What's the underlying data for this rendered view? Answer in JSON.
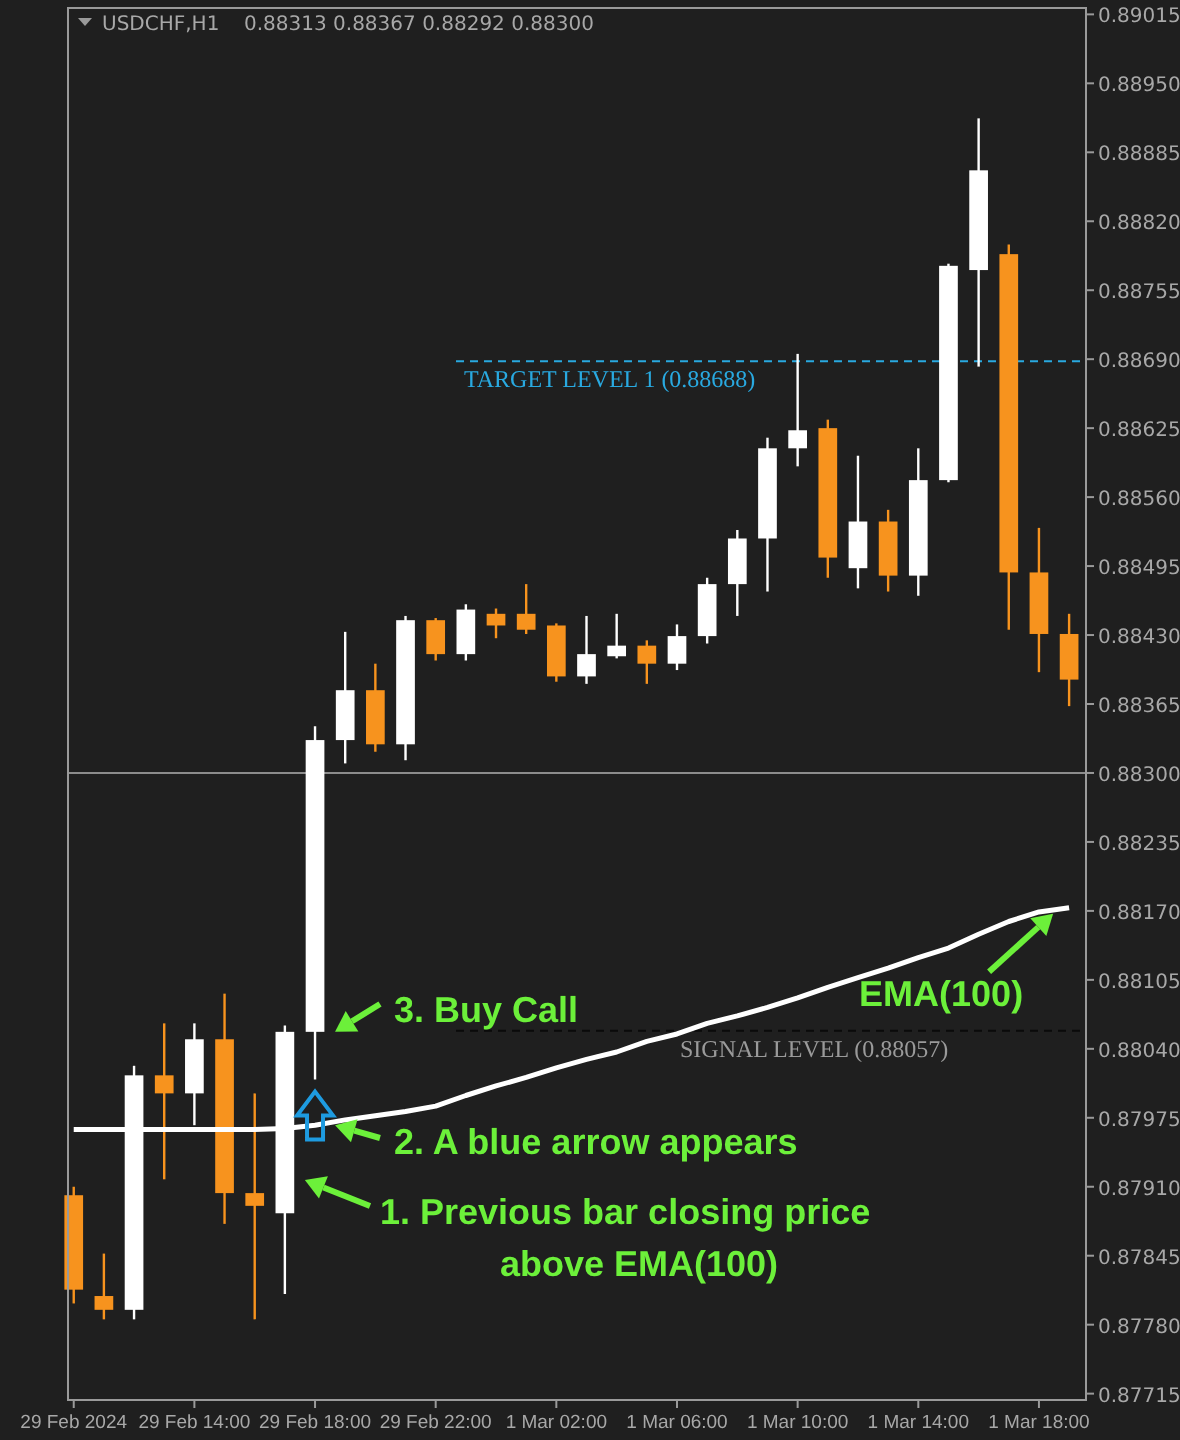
{
  "chart_data": {
    "type": "candlestick",
    "title": "USDCHF,H1",
    "subtitle": "0.88313 0.88367 0.88292 0.88300",
    "categories": [
      "29 Feb 2024",
      null,
      null,
      null,
      "29 Feb 14:00",
      null,
      null,
      null,
      "29 Feb 18:00",
      null,
      null,
      null,
      "29 Feb 22:00",
      null,
      null,
      null,
      "1 Mar 02:00",
      null,
      null,
      null,
      "1 Mar 06:00",
      null,
      null,
      null,
      "1 Mar 10:00",
      null,
      null,
      null,
      "1 Mar 14:00",
      null,
      null,
      null,
      "1 Mar 18:00",
      null
    ],
    "ohlc": [
      [
        0.87902,
        0.8791,
        0.878,
        0.87813
      ],
      [
        0.87807,
        0.87847,
        0.87785,
        0.87794
      ],
      [
        0.87794,
        0.88024,
        0.87785,
        0.88015
      ],
      [
        0.88015,
        0.88064,
        0.87917,
        0.87998
      ],
      [
        0.87998,
        0.88064,
        0.87968,
        0.88049
      ],
      [
        0.88049,
        0.88092,
        0.87875,
        0.87904
      ],
      [
        0.87904,
        0.87998,
        0.87785,
        0.87892
      ],
      [
        0.87885,
        0.88062,
        0.87809,
        0.88056
      ],
      [
        0.88056,
        0.88344,
        0.88011,
        0.88331
      ],
      [
        0.88331,
        0.88433,
        0.88309,
        0.88378
      ],
      [
        0.88378,
        0.88403,
        0.8832,
        0.88327
      ],
      [
        0.88327,
        0.88448,
        0.88312,
        0.88444
      ],
      [
        0.88444,
        0.88446,
        0.88406,
        0.88412
      ],
      [
        0.88412,
        0.88459,
        0.88406,
        0.88454
      ],
      [
        0.8845,
        0.88455,
        0.88427,
        0.88439
      ],
      [
        0.8845,
        0.88478,
        0.88431,
        0.88435
      ],
      [
        0.88439,
        0.88441,
        0.88386,
        0.88391
      ],
      [
        0.88391,
        0.88448,
        0.88384,
        0.88412
      ],
      [
        0.8841,
        0.8845,
        0.88408,
        0.8842
      ],
      [
        0.8842,
        0.88425,
        0.88384,
        0.88403
      ],
      [
        0.88403,
        0.8844,
        0.88397,
        0.88429
      ],
      [
        0.88429,
        0.88484,
        0.88422,
        0.88478
      ],
      [
        0.88478,
        0.88529,
        0.88448,
        0.88521
      ],
      [
        0.88521,
        0.88616,
        0.88471,
        0.88606
      ],
      [
        0.88606,
        0.88695,
        0.88589,
        0.88623
      ],
      [
        0.88625,
        0.88633,
        0.88484,
        0.88503
      ],
      [
        0.88493,
        0.88599,
        0.88474,
        0.88537
      ],
      [
        0.88537,
        0.88548,
        0.88471,
        0.88486
      ],
      [
        0.88486,
        0.88606,
        0.88467,
        0.88576
      ],
      [
        0.88576,
        0.8878,
        0.88574,
        0.88778
      ],
      [
        0.88774,
        0.88917,
        0.88683,
        0.88868
      ],
      [
        0.88789,
        0.88798,
        0.88435,
        0.88489
      ],
      [
        0.88489,
        0.88531,
        0.88395,
        0.88431
      ],
      [
        0.88431,
        0.8845,
        0.88363,
        0.88388
      ]
    ],
    "colors": [
      "#f7931e",
      "#f7931e",
      "#ffffff",
      "#f7931e",
      "#ffffff",
      "#f7931e",
      "#f7931e",
      "#ffffff",
      "#ffffff",
      "#ffffff",
      "#f7931e",
      "#ffffff",
      "#f7931e",
      "#ffffff",
      "#f7931e",
      "#f7931e",
      "#f7931e",
      "#ffffff",
      "#ffffff",
      "#f7931e",
      "#ffffff",
      "#ffffff",
      "#ffffff",
      "#ffffff",
      "#ffffff",
      "#f7931e",
      "#ffffff",
      "#f7931e",
      "#ffffff",
      "#ffffff",
      "#ffffff",
      "#f7931e",
      "#f7931e",
      "#f7931e"
    ],
    "series": [
      {
        "type": "line",
        "name": "EMA(100)",
        "color": "#ffffff",
        "values": [
          0.87964,
          0.87964,
          0.87964,
          0.87964,
          0.87964,
          0.87964,
          0.87964,
          0.87965,
          0.87968,
          0.87973,
          0.87977,
          0.87981,
          0.87986,
          0.87996,
          0.88005,
          0.88013,
          0.88022,
          0.8803,
          0.88037,
          0.88047,
          0.88054,
          0.88064,
          0.88071,
          0.88079,
          0.88088,
          0.88098,
          0.88107,
          0.88116,
          0.88126,
          0.88135,
          0.88148,
          0.8816,
          0.88169,
          0.88173
        ]
      }
    ],
    "ylim": [
      0.87709,
      0.89021
    ],
    "yticks": [
      {
        "value": 0.89015,
        "label": "0.89015"
      },
      {
        "value": 0.8895,
        "label": "0.88950"
      },
      {
        "value": 0.88885,
        "label": "0.88885"
      },
      {
        "value": 0.8882,
        "label": "0.88820"
      },
      {
        "value": 0.88755,
        "label": "0.88755"
      },
      {
        "value": 0.8869,
        "label": "0.88690"
      },
      {
        "value": 0.88625,
        "label": "0.88625"
      },
      {
        "value": 0.8856,
        "label": "0.88560"
      },
      {
        "value": 0.88495,
        "label": "0.88495"
      },
      {
        "value": 0.8843,
        "label": "0.88430"
      },
      {
        "value": 0.88365,
        "label": "0.88365"
      },
      {
        "value": 0.883,
        "label": "0.88300"
      },
      {
        "value": 0.88235,
        "label": "0.88235"
      },
      {
        "value": 0.8817,
        "label": "0.88170"
      },
      {
        "value": 0.88105,
        "label": "0.88105"
      },
      {
        "value": 0.8804,
        "label": "0.88040"
      },
      {
        "value": 0.87975,
        "label": "0.87975"
      },
      {
        "value": 0.8791,
        "label": "0.87910"
      },
      {
        "value": 0.87845,
        "label": "0.87845"
      },
      {
        "value": 0.8778,
        "label": "0.87780"
      },
      {
        "value": 0.87715,
        "label": "0.87715"
      }
    ],
    "ref_lines": [
      {
        "axis": "y",
        "value": 0.88688,
        "label": "TARGET LEVEL 1 (0.88688)",
        "color": "#29a9e0",
        "line_style": "dashed"
      },
      {
        "axis": "y",
        "value": 0.88057,
        "label": "SIGNAL LEVEL (0.88057)",
        "color": "#0a0a0a",
        "line_style": "dashed"
      },
      {
        "axis": "y",
        "value": 0.883,
        "color": "#8c8c8c",
        "line_style": "solid"
      }
    ],
    "annotations": [
      "1. Previous bar closing price above EMA(100)",
      {
        "text": "2. A blue arrow appears",
        "x": "29 Feb 18:00",
        "y": 0.87968
      },
      {
        "text": "3. Buy Call",
        "x": "29 Feb 18:00",
        "y": 0.88056
      }
    ],
    "grid": false
  }
}
